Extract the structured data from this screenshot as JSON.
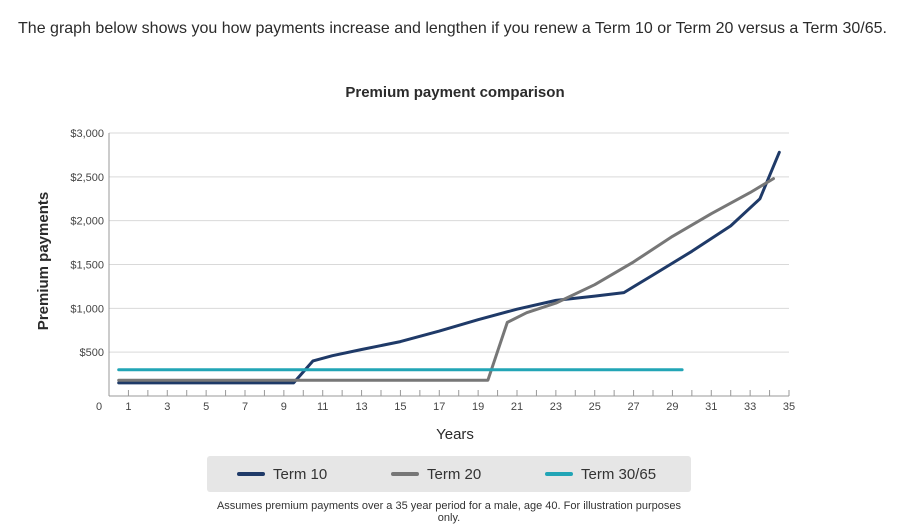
{
  "intro_text": "The graph below shows you how payments increase and lengthen if you renew a Term 10 or Term 20 versus a Term 30/65.",
  "footnote": "Assumes premium payments over a 35 year period for a male, age 40. For illustration purposes only.",
  "chart_data": {
    "type": "line",
    "title": "Premium payment comparison",
    "xlabel": "Years",
    "ylabel": "Premium payments",
    "xlim": [
      0,
      35
    ],
    "ylim": [
      0,
      3000
    ],
    "x_tick_labels": [
      "0",
      "1",
      "3",
      "5",
      "7",
      "9",
      "11",
      "13",
      "15",
      "17",
      "19",
      "21",
      "23",
      "25",
      "27",
      "29",
      "31",
      "33",
      "35"
    ],
    "y_tick_values": [
      500,
      1000,
      1500,
      2000,
      2500,
      3000
    ],
    "y_tick_labels": [
      "$500",
      "$1,000",
      "$1,500",
      "$2,000",
      "$2,500",
      "$3,000"
    ],
    "grid": true,
    "legend_position": "bottom",
    "series": [
      {
        "name": "Term 10",
        "color": "#1f3a68",
        "points": [
          [
            0.5,
            150
          ],
          [
            9.5,
            150
          ],
          [
            10.5,
            400
          ],
          [
            11.5,
            460
          ],
          [
            13,
            530
          ],
          [
            15,
            620
          ],
          [
            17,
            740
          ],
          [
            19,
            870
          ],
          [
            21,
            990
          ],
          [
            23,
            1090
          ],
          [
            25,
            1140
          ],
          [
            26.5,
            1180
          ],
          [
            28,
            1380
          ],
          [
            30,
            1650
          ],
          [
            32,
            1940
          ],
          [
            33.5,
            2250
          ],
          [
            34.5,
            2780
          ]
        ]
      },
      {
        "name": "Term 20",
        "color": "#777777",
        "points": [
          [
            0.5,
            180
          ],
          [
            19.5,
            180
          ],
          [
            20.5,
            840
          ],
          [
            21.5,
            950
          ],
          [
            23,
            1060
          ],
          [
            25,
            1270
          ],
          [
            27,
            1530
          ],
          [
            29,
            1820
          ],
          [
            31,
            2080
          ],
          [
            33,
            2320
          ],
          [
            34.2,
            2480
          ]
        ]
      },
      {
        "name": "Term 30/65",
        "color": "#22a5b6",
        "points": [
          [
            0.5,
            300
          ],
          [
            29.5,
            300
          ]
        ]
      }
    ]
  }
}
